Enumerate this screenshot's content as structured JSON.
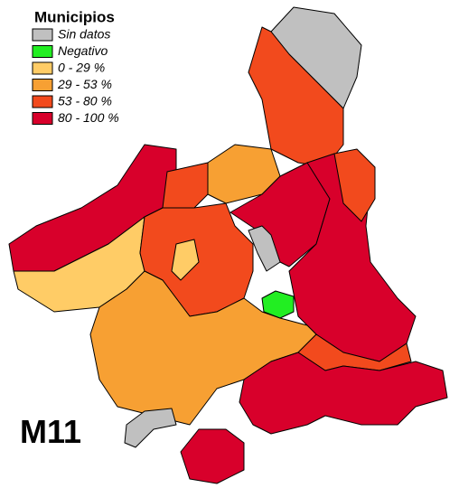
{
  "legend": {
    "title": "Municipios",
    "items": [
      {
        "label": "Sin datos",
        "color": "#c0c0c0"
      },
      {
        "label": "Negativo",
        "color": "#22ee22"
      },
      {
        "label": "0 - 29 %",
        "color": "#ffcc66"
      },
      {
        "label": "29 - 53 %",
        "color": "#f7a033"
      },
      {
        "label": "53 - 80 %",
        "color": "#f24a1d"
      },
      {
        "label": "80 - 100 %",
        "color": "#d8002b"
      }
    ]
  },
  "label": "M11"
}
